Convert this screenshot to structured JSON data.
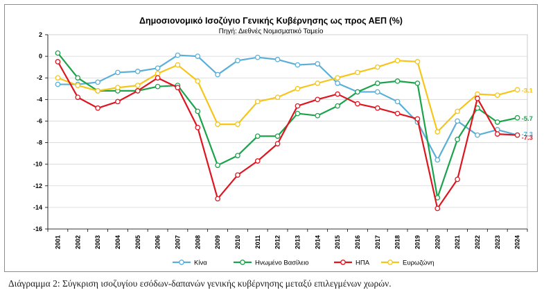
{
  "caption": "Διάγραμμα 2: Σύγκριση ισοζυγίου εσόδων-δαπανών γενικής κυβέρνησης μεταξύ επιλεγμένων χωρών.",
  "chart_data": {
    "type": "line",
    "title": "Δημοσιονομικό Ισοζύγιο Γενικής Κυβέρνησης ως προς ΑΕΠ (%)",
    "subtitle": "Πηγή: Διεθνές Νομισματικό Ταμείο",
    "xlabel": "",
    "ylabel": "",
    "ylim": [
      -16,
      2
    ],
    "yticks": [
      "2",
      "0",
      "-2",
      "-4",
      "-6",
      "-8",
      "-10",
      "-12",
      "-14",
      "-16"
    ],
    "x": [
      "2001",
      "2002",
      "2003",
      "2004",
      "2005",
      "2006",
      "2007",
      "2008",
      "2009",
      "2010",
      "2011",
      "2012",
      "2013",
      "2014",
      "2015",
      "2016",
      "2017",
      "2018",
      "2019",
      "2020",
      "2021",
      "2022",
      "2023",
      "2024"
    ],
    "grid": true,
    "legend": "bottom",
    "series": [
      {
        "name": "Κίνα",
        "color": "#5aafd8",
        "end_label": "-7.3",
        "values": [
          -2.6,
          -2.6,
          -2.4,
          -1.5,
          -1.4,
          -1.1,
          0.1,
          0.0,
          -1.7,
          -0.4,
          -0.1,
          -0.3,
          -0.8,
          -0.7,
          -2.5,
          -3.3,
          -3.3,
          -4.2,
          -6.1,
          -9.6,
          -6.0,
          -7.3,
          -6.8,
          -7.3
        ]
      },
      {
        "name": "Ηνωμένο Βασίλειο",
        "color": "#1aa34a",
        "end_label": "-5.7",
        "values": [
          0.3,
          -2.0,
          -3.2,
          -3.2,
          -3.2,
          -2.8,
          -2.7,
          -5.1,
          -10.1,
          -9.2,
          -7.4,
          -7.4,
          -5.3,
          -5.5,
          -4.6,
          -3.3,
          -2.5,
          -2.3,
          -2.5,
          -13.1,
          -7.7,
          -4.8,
          -6.1,
          -5.7
        ]
      },
      {
        "name": "ΗΠΑ",
        "color": "#e0141e",
        "end_label": "-7.3",
        "values": [
          -0.5,
          -3.8,
          -4.8,
          -4.2,
          -3.2,
          -2.0,
          -2.9,
          -6.6,
          -13.2,
          -11.0,
          -9.7,
          -8.1,
          -4.6,
          -4.0,
          -3.5,
          -4.4,
          -4.8,
          -5.3,
          -5.8,
          -14.1,
          -11.4,
          -3.9,
          -7.2,
          -7.3
        ]
      },
      {
        "name": "Ευρωζώνη",
        "color": "#f5c518",
        "end_label": "-3.1",
        "values": [
          -2.0,
          -2.7,
          -3.2,
          -2.9,
          -2.7,
          -1.6,
          -0.8,
          -2.3,
          -6.3,
          -6.3,
          -4.2,
          -3.8,
          -3.0,
          -2.5,
          -2.0,
          -1.5,
          -1.0,
          -0.4,
          -0.5,
          -7.0,
          -5.1,
          -3.5,
          -3.6,
          -3.1
        ]
      }
    ]
  }
}
